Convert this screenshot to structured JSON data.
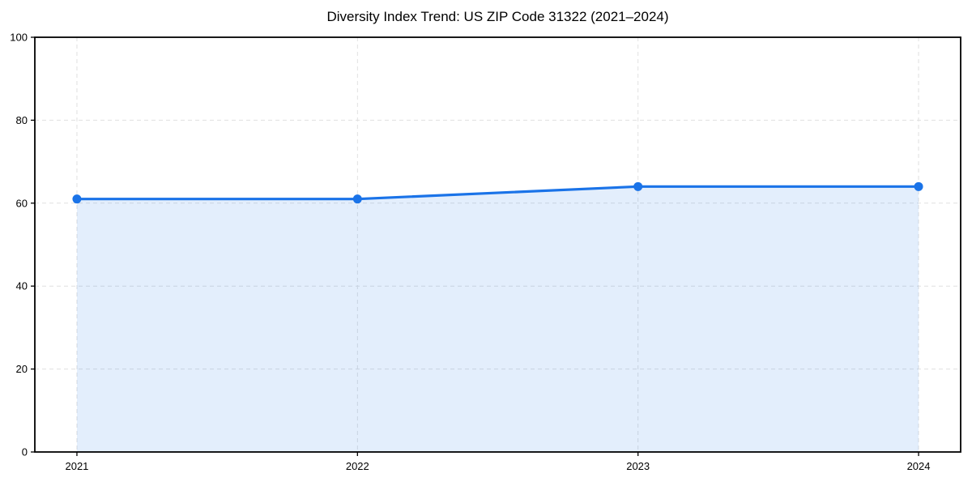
{
  "page": {
    "title": "Diversity Index Trend: US ZIP Code 31322 (2021–2024)"
  },
  "chart_data": {
    "type": "area",
    "title": "Diversity Index Trend: US ZIP Code 31322 (2021–2024)",
    "categories": [
      2021,
      2022,
      2023,
      2024
    ],
    "series": [
      {
        "name": "Diversity Index",
        "values": [
          61,
          61,
          64,
          64
        ]
      }
    ],
    "xlabel": "",
    "ylabel": "",
    "xlim": [
      2020.85,
      2024.15
    ],
    "ylim": [
      0,
      100
    ],
    "xticks": [
      2021,
      2022,
      2023,
      2024
    ],
    "yticks": [
      0,
      20,
      40,
      60,
      80,
      100
    ],
    "grid": true,
    "grid_style": "dashed",
    "legend": false,
    "legend_position": "none",
    "colors": {
      "line": "#1a73e8",
      "marker": "#1a73e8",
      "fill": "#1a73e8",
      "fill_opacity": 0.12,
      "grid": "#e0e0e0",
      "spine": "#000000",
      "tick_label": "#000000",
      "background": "#ffffff"
    }
  }
}
